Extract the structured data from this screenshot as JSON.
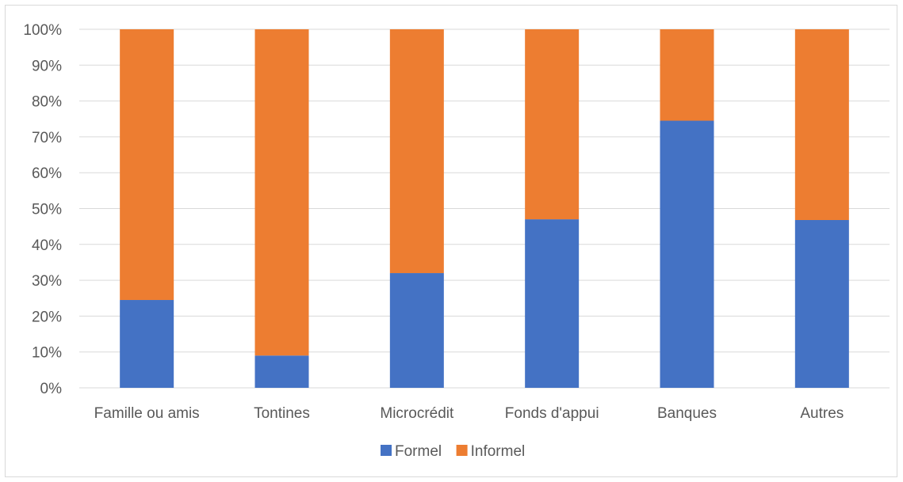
{
  "chart_data": {
    "type": "bar",
    "stacked": true,
    "percent": true,
    "categories": [
      "Famille ou amis",
      "Tontines",
      "Microcrédit",
      "Fonds d'appui",
      "Banques",
      "Autres"
    ],
    "series": [
      {
        "name": "Formel",
        "color": "#4472c4",
        "values": [
          24.5,
          9,
          32,
          47,
          74.5,
          46.8
        ]
      },
      {
        "name": "Informel",
        "color": "#ed7d31",
        "values": [
          75.5,
          91,
          68,
          53,
          25.5,
          53.2
        ]
      }
    ],
    "title": "",
    "xlabel": "",
    "ylabel": "",
    "ylim": [
      0,
      100
    ],
    "yticks": [
      "0%",
      "10%",
      "20%",
      "30%",
      "40%",
      "50%",
      "60%",
      "70%",
      "80%",
      "90%",
      "100%"
    ],
    "grid": true,
    "legend": "bottom"
  }
}
